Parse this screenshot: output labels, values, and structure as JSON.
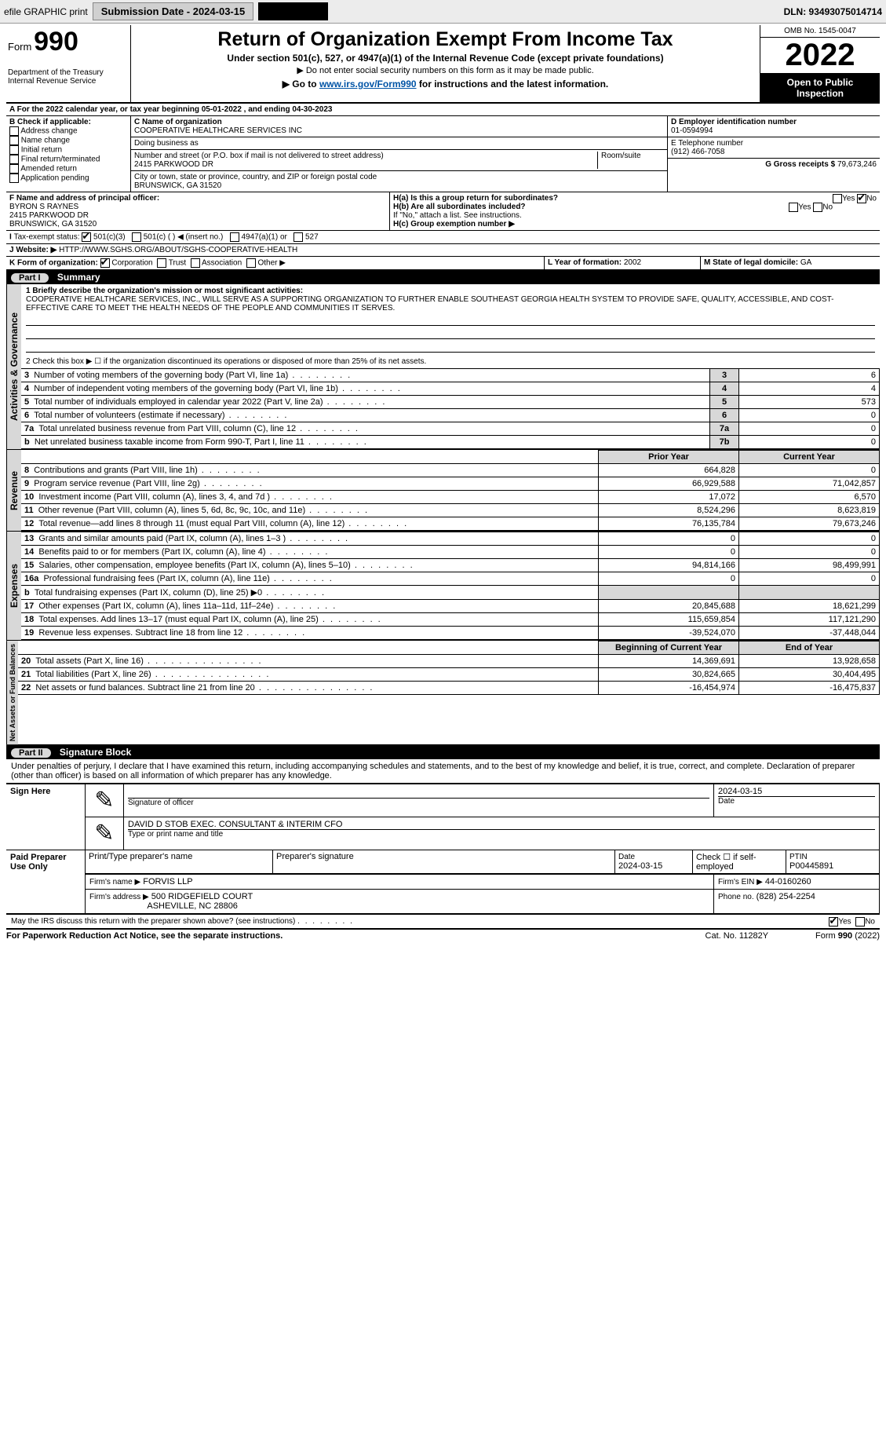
{
  "topbar": {
    "efile": "efile GRAPHIC print",
    "submission_btn": "Submission Date - 2024-03-15",
    "dln": "DLN: 93493075014714"
  },
  "header": {
    "form_prefix": "Form",
    "form_number": "990",
    "dept1": "Department of the Treasury",
    "dept2": "Internal Revenue Service",
    "title": "Return of Organization Exempt From Income Tax",
    "sub1": "Under section 501(c), 527, or 4947(a)(1) of the Internal Revenue Code (except private foundations)",
    "sub2": "▶ Do not enter social security numbers on this form as it may be made public.",
    "sub3_pre": "▶ Go to ",
    "sub3_link": "www.irs.gov/Form990",
    "sub3_post": " for instructions and the latest information.",
    "omb": "OMB No. 1545-0047",
    "year": "2022",
    "open": "Open to Public Inspection"
  },
  "periodA": "For the 2022 calendar year, or tax year beginning 05-01-2022    , and ending 04-30-2023",
  "sectionB": {
    "title": "B Check if applicable:",
    "items": [
      "Address change",
      "Name change",
      "Initial return",
      "Final return/terminated",
      "Amended return",
      "Application pending"
    ]
  },
  "sectionC": {
    "label": "C Name of organization",
    "name": "COOPERATIVE HEALTHCARE SERVICES INC",
    "dba_label": "Doing business as",
    "dba": "",
    "street_label": "Number and street (or P.O. box if mail is not delivered to street address)",
    "room_label": "Room/suite",
    "street": "2415 PARKWOOD DR",
    "city_label": "City or town, state or province, country, and ZIP or foreign postal code",
    "city": "BRUNSWICK, GA  31520"
  },
  "sectionD": {
    "label": "D Employer identification number",
    "value": "01-0594994"
  },
  "sectionE": {
    "label": "E Telephone number",
    "value": "(912) 466-7058"
  },
  "sectionG": {
    "label": "G Gross receipts $",
    "value": "79,673,246"
  },
  "sectionF": {
    "label": "F Name and address of principal officer:",
    "name": "BYRON S RAYNES",
    "street": "2415 PARKWOOD DR",
    "city": "BRUNSWICK, GA  31520"
  },
  "sectionH": {
    "a": "H(a)  Is this a group return for subordinates?",
    "b": "H(b)  Are all subordinates included?",
    "b_note": "If \"No,\" attach a list. See instructions.",
    "c": "H(c)  Group exemption number ▶",
    "yes": "Yes",
    "no": "No"
  },
  "sectionI": {
    "label": "Tax-exempt status:",
    "opt1": "501(c)(3)",
    "opt2": "501(c) (  ) ◀ (insert no.)",
    "opt3": "4947(a)(1) or",
    "opt4": "527"
  },
  "sectionJ": {
    "label": "Website: ▶",
    "value": "HTTP://WWW.SGHS.ORG/ABOUT/SGHS-COOPERATIVE-HEALTH"
  },
  "sectionK": {
    "label": "K Form of organization:",
    "opts": [
      "Corporation",
      "Trust",
      "Association",
      "Other ▶"
    ]
  },
  "sectionL": {
    "label": "L Year of formation:",
    "value": "2002"
  },
  "sectionM": {
    "label": "M State of legal domicile:",
    "value": "GA"
  },
  "part1": {
    "head": "Part I",
    "title": "Summary",
    "q1_label": "1  Briefly describe the organization's mission or most significant activities:",
    "q1_text": "COOPERATIVE HEALTHCARE SERVICES, INC., WILL SERVE AS A SUPPORTING ORGANIZATION TO FURTHER ENABLE SOUTHEAST GEORGIA HEALTH SYSTEM TO PROVIDE SAFE, QUALITY, ACCESSIBLE, AND COST-EFFECTIVE CARE TO MEET THE HEALTH NEEDS OF THE PEOPLE AND COMMUNITIES IT SERVES.",
    "q2": "2  Check this box ▶ ☐ if the organization discontinued its operations or disposed of more than 25% of its net assets.",
    "rows_top": [
      {
        "n": "3",
        "t": "Number of voting members of the governing body (Part VI, line 1a)",
        "box": "3",
        "v": "6"
      },
      {
        "n": "4",
        "t": "Number of independent voting members of the governing body (Part VI, line 1b)",
        "box": "4",
        "v": "4"
      },
      {
        "n": "5",
        "t": "Total number of individuals employed in calendar year 2022 (Part V, line 2a)",
        "box": "5",
        "v": "573"
      },
      {
        "n": "6",
        "t": "Total number of volunteers (estimate if necessary)",
        "box": "6",
        "v": "0"
      },
      {
        "n": "7a",
        "t": "Total unrelated business revenue from Part VIII, column (C), line 12",
        "box": "7a",
        "v": "0"
      },
      {
        "n": "b",
        "t": "Net unrelated business taxable income from Form 990-T, Part I, line 11",
        "box": "7b",
        "v": "0"
      }
    ],
    "col_prior": "Prior Year",
    "col_current": "Current Year",
    "revenue": [
      {
        "n": "8",
        "t": "Contributions and grants (Part VIII, line 1h)",
        "p": "664,828",
        "c": "0"
      },
      {
        "n": "9",
        "t": "Program service revenue (Part VIII, line 2g)",
        "p": "66,929,588",
        "c": "71,042,857"
      },
      {
        "n": "10",
        "t": "Investment income (Part VIII, column (A), lines 3, 4, and 7d )",
        "p": "17,072",
        "c": "6,570"
      },
      {
        "n": "11",
        "t": "Other revenue (Part VIII, column (A), lines 5, 6d, 8c, 9c, 10c, and 11e)",
        "p": "8,524,296",
        "c": "8,623,819"
      },
      {
        "n": "12",
        "t": "Total revenue—add lines 8 through 11 (must equal Part VIII, column (A), line 12)",
        "p": "76,135,784",
        "c": "79,673,246"
      }
    ],
    "expenses": [
      {
        "n": "13",
        "t": "Grants and similar amounts paid (Part IX, column (A), lines 1–3 )",
        "p": "0",
        "c": "0"
      },
      {
        "n": "14",
        "t": "Benefits paid to or for members (Part IX, column (A), line 4)",
        "p": "0",
        "c": "0"
      },
      {
        "n": "15",
        "t": "Salaries, other compensation, employee benefits (Part IX, column (A), lines 5–10)",
        "p": "94,814,166",
        "c": "98,499,991"
      },
      {
        "n": "16a",
        "t": "Professional fundraising fees (Part IX, column (A), line 11e)",
        "p": "0",
        "c": "0"
      },
      {
        "n": "b",
        "t": "Total fundraising expenses (Part IX, column (D), line 25) ▶0",
        "p": "",
        "c": "",
        "shade": true
      },
      {
        "n": "17",
        "t": "Other expenses (Part IX, column (A), lines 11a–11d, 11f–24e)",
        "p": "20,845,688",
        "c": "18,621,299"
      },
      {
        "n": "18",
        "t": "Total expenses. Add lines 13–17 (must equal Part IX, column (A), line 25)",
        "p": "115,659,854",
        "c": "117,121,290"
      },
      {
        "n": "19",
        "t": "Revenue less expenses. Subtract line 18 from line 12",
        "p": "-39,524,070",
        "c": "-37,448,044"
      }
    ],
    "col_begin": "Beginning of Current Year",
    "col_end": "End of Year",
    "netassets": [
      {
        "n": "20",
        "t": "Total assets (Part X, line 16)",
        "p": "14,369,691",
        "c": "13,928,658"
      },
      {
        "n": "21",
        "t": "Total liabilities (Part X, line 26)",
        "p": "30,824,665",
        "c": "30,404,495"
      },
      {
        "n": "22",
        "t": "Net assets or fund balances. Subtract line 21 from line 20",
        "p": "-16,454,974",
        "c": "-16,475,837"
      }
    ],
    "vlabels": {
      "gov": "Activities & Governance",
      "rev": "Revenue",
      "exp": "Expenses",
      "net": "Net Assets or Fund Balances"
    }
  },
  "part2": {
    "head": "Part II",
    "title": "Signature Block",
    "penalty": "Under penalties of perjury, I declare that I have examined this return, including accompanying schedules and statements, and to the best of my knowledge and belief, it is true, correct, and complete. Declaration of preparer (other than officer) is based on all information of which preparer has any knowledge.",
    "sign_here": "Sign Here",
    "sig_officer": "Signature of officer",
    "sig_date": "Date",
    "sig_date_val": "2024-03-15",
    "officer_name": "DAVID D STOB  EXEC. CONSULTANT & INTERIM CFO",
    "officer_type": "Type or print name and title",
    "paid": "Paid Preparer Use Only",
    "cols": {
      "c1": "Print/Type preparer's name",
      "c2": "Preparer's signature",
      "c3": "Date",
      "c3v": "2024-03-15",
      "c4": "Check ☐ if self-employed",
      "c5": "PTIN",
      "c5v": "P00445891"
    },
    "firm_name_l": "Firm's name    ▶",
    "firm_name": "FORVIS LLP",
    "firm_ein_l": "Firm's EIN ▶",
    "firm_ein": "44-0160260",
    "firm_addr_l": "Firm's address ▶",
    "firm_addr1": "500 RIDGEFIELD COURT",
    "firm_addr2": "ASHEVILLE, NC  28806",
    "phone_l": "Phone no.",
    "phone": "(828) 254-2254",
    "discuss": "May the IRS discuss this return with the preparer shown above? (see instructions)",
    "yes": "Yes",
    "no": "No"
  },
  "footer": {
    "left": "For Paperwork Reduction Act Notice, see the separate instructions.",
    "mid": "Cat. No. 11282Y",
    "right": "Form 990 (2022)"
  }
}
